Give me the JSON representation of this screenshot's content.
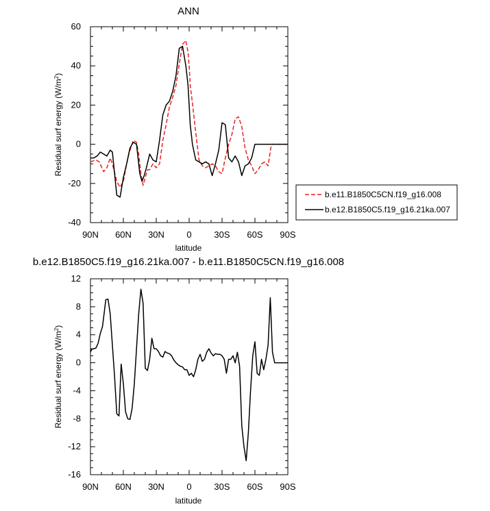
{
  "chart_data": [
    {
      "type": "line",
      "title": "ANN",
      "xlabel": "latitude",
      "ylabel": "Residual surf energy (W/m",
      "ylabel_sup": "2",
      "ylabel_end": ")",
      "xlim": [
        90,
        -90
      ],
      "ylim": [
        -40,
        60
      ],
      "xticks": [
        90,
        60,
        30,
        0,
        -30,
        -60,
        -90
      ],
      "xtick_labels": [
        "90N",
        "60N",
        "30N",
        "0",
        "30S",
        "60S",
        "90S"
      ],
      "yticks": [
        -40,
        -20,
        0,
        20,
        40,
        60
      ],
      "ytick_labels": [
        "-40",
        "-20",
        "0",
        "20",
        "40",
        "60"
      ],
      "legend_position": "right",
      "series": [
        {
          "name": "b.e11.B1850C5CN.f19_g16.008",
          "color": "#e8211e",
          "dash": "dashed",
          "x": [
            90,
            85,
            82,
            78,
            75,
            72,
            70,
            66,
            63,
            60,
            57,
            55,
            51,
            48,
            46,
            44,
            42,
            40,
            38,
            36,
            33,
            30,
            27,
            24,
            21,
            18,
            15,
            12,
            9,
            6,
            3,
            1,
            0,
            -1,
            -3,
            -6,
            -9,
            -12,
            -15,
            -18,
            -21,
            -24,
            -27,
            -30,
            -33,
            -36,
            -39,
            -42,
            -45,
            -48,
            -51,
            -54,
            -57,
            -60,
            -63,
            -66,
            -69,
            -72,
            -75,
            -78,
            -80,
            -85,
            -90
          ],
          "y": [
            -9,
            -8,
            -9,
            -14,
            -12,
            -7,
            -10,
            -19,
            -22,
            -19,
            -10,
            -5,
            2,
            1,
            -5,
            -15,
            -21,
            -17,
            -13,
            -13,
            -10,
            -12,
            -10,
            2,
            10,
            19,
            24,
            30,
            41,
            51,
            53,
            47,
            40,
            30,
            21,
            6,
            -8,
            -11,
            -12,
            -11,
            -10,
            -11,
            -14,
            -15,
            -7,
            0,
            5,
            13,
            14,
            9,
            -2,
            -8,
            -11,
            -15,
            -13,
            -10,
            -9,
            -11,
            0,
            0,
            0,
            0,
            0
          ]
        },
        {
          "name": "b.e12.B1850C5.f19_g16.21ka.007",
          "color": "#000000",
          "dash": "solid",
          "x": [
            90,
            87,
            84,
            81,
            78,
            75,
            72,
            70,
            66,
            63,
            60,
            57,
            54,
            51,
            48,
            45,
            43,
            41,
            39,
            36,
            33,
            30,
            27,
            24,
            21,
            18,
            15,
            12,
            9,
            6,
            3,
            1,
            0,
            -1,
            -3,
            -6,
            -9,
            -12,
            -15,
            -18,
            -21,
            -24,
            -27,
            -30,
            -33,
            -36,
            -39,
            -42,
            -45,
            -48,
            -51,
            -54,
            -57,
            -60,
            -63,
            -66,
            -69,
            -72,
            -75,
            -78,
            -80,
            -85,
            -90
          ],
          "y": [
            -7,
            -7,
            -6,
            -4,
            -5,
            -6,
            -3,
            -4,
            -26,
            -27,
            -17,
            -10,
            -2,
            1,
            0,
            -15,
            -19,
            -16,
            -12,
            -5,
            -8,
            -9,
            2,
            15,
            20,
            22,
            27,
            35,
            49,
            50,
            40,
            30,
            20,
            10,
            0,
            -8,
            -9,
            -10,
            -9,
            -10,
            -16,
            -10,
            -3,
            11,
            10,
            -7,
            -9,
            -6,
            -9,
            -16,
            -11,
            -10,
            -7,
            0,
            0,
            0,
            0,
            0,
            0,
            0,
            0,
            0,
            0
          ]
        }
      ]
    },
    {
      "type": "line",
      "title": "b.e12.B1850C5.f19_g16.21ka.007 - b.e11.B1850C5CN.f19_g16.008",
      "xlabel": "latitude",
      "ylabel": "Residual surf energy (W/m",
      "ylabel_sup": "2",
      "ylabel_end": ")",
      "xlim": [
        90,
        -90
      ],
      "ylim": [
        -16,
        12
      ],
      "xticks": [
        90,
        60,
        30,
        0,
        -30,
        -60,
        -90
      ],
      "xtick_labels": [
        "90N",
        "60N",
        "30N",
        "0",
        "30S",
        "60S",
        "90S"
      ],
      "yticks": [
        -16,
        -12,
        -8,
        -4,
        0,
        4,
        8,
        12
      ],
      "ytick_labels": [
        "-16",
        "-12",
        "-8",
        "-4",
        "0",
        "4",
        "8",
        "12"
      ],
      "series": [
        {
          "color": "#000000",
          "dash": "solid",
          "x": [
            90,
            89,
            87,
            85,
            83,
            81,
            79,
            76,
            74,
            72,
            70,
            68,
            66,
            64,
            62,
            60,
            58,
            56,
            54,
            52,
            50,
            48,
            46,
            44,
            42,
            40,
            38,
            36,
            34,
            32,
            30,
            28,
            26,
            24,
            22,
            20,
            18,
            16,
            14,
            12,
            10,
            8,
            6,
            4,
            2,
            0,
            -2,
            -4,
            -6,
            -8,
            -10,
            -12,
            -14,
            -16,
            -18,
            -20,
            -22,
            -24,
            -26,
            -28,
            -30,
            -32,
            -34,
            -36,
            -38,
            -40,
            -42,
            -44,
            -46,
            -48,
            -50,
            -52,
            -54,
            -56,
            -58,
            -60,
            -62,
            -64,
            -66,
            -68,
            -70,
            -72,
            -74,
            -76,
            -78,
            -80,
            -82,
            -84,
            -86,
            -88,
            -90
          ],
          "y": [
            1.5,
            1.9,
            2.0,
            2.1,
            2.8,
            4.2,
            5.2,
            9.0,
            9.1,
            7.0,
            2.5,
            -2.0,
            -7.3,
            -7.6,
            -0.2,
            -3.0,
            -7.0,
            -8.0,
            -8.1,
            -6.5,
            -3.0,
            2.0,
            7.0,
            10.5,
            8.5,
            -0.8,
            -1.1,
            0.5,
            3.5,
            2.0,
            2.0,
            1.6,
            1.0,
            0.8,
            1.6,
            1.4,
            1.3,
            1.0,
            0.4,
            0.0,
            -0.3,
            -0.5,
            -0.6,
            -1.0,
            -1.0,
            -1.8,
            -1.5,
            -2.0,
            -1.0,
            0.5,
            1.2,
            0.2,
            0.5,
            1.5,
            2.0,
            1.4,
            1.0,
            1.3,
            1.2,
            1.2,
            1.0,
            0.5,
            -1.5,
            0.5,
            0.5,
            1.0,
            0.0,
            1.5,
            -0.5,
            -9.0,
            -12.0,
            -14.0,
            -10.0,
            -4.0,
            1.0,
            3.0,
            -1.5,
            -1.8,
            0.5,
            -1.0,
            0.5,
            2.5,
            9.3,
            1.5,
            0.0,
            0.0,
            0.0,
            0.0,
            0.0,
            0.0,
            0.0
          ]
        }
      ]
    }
  ]
}
